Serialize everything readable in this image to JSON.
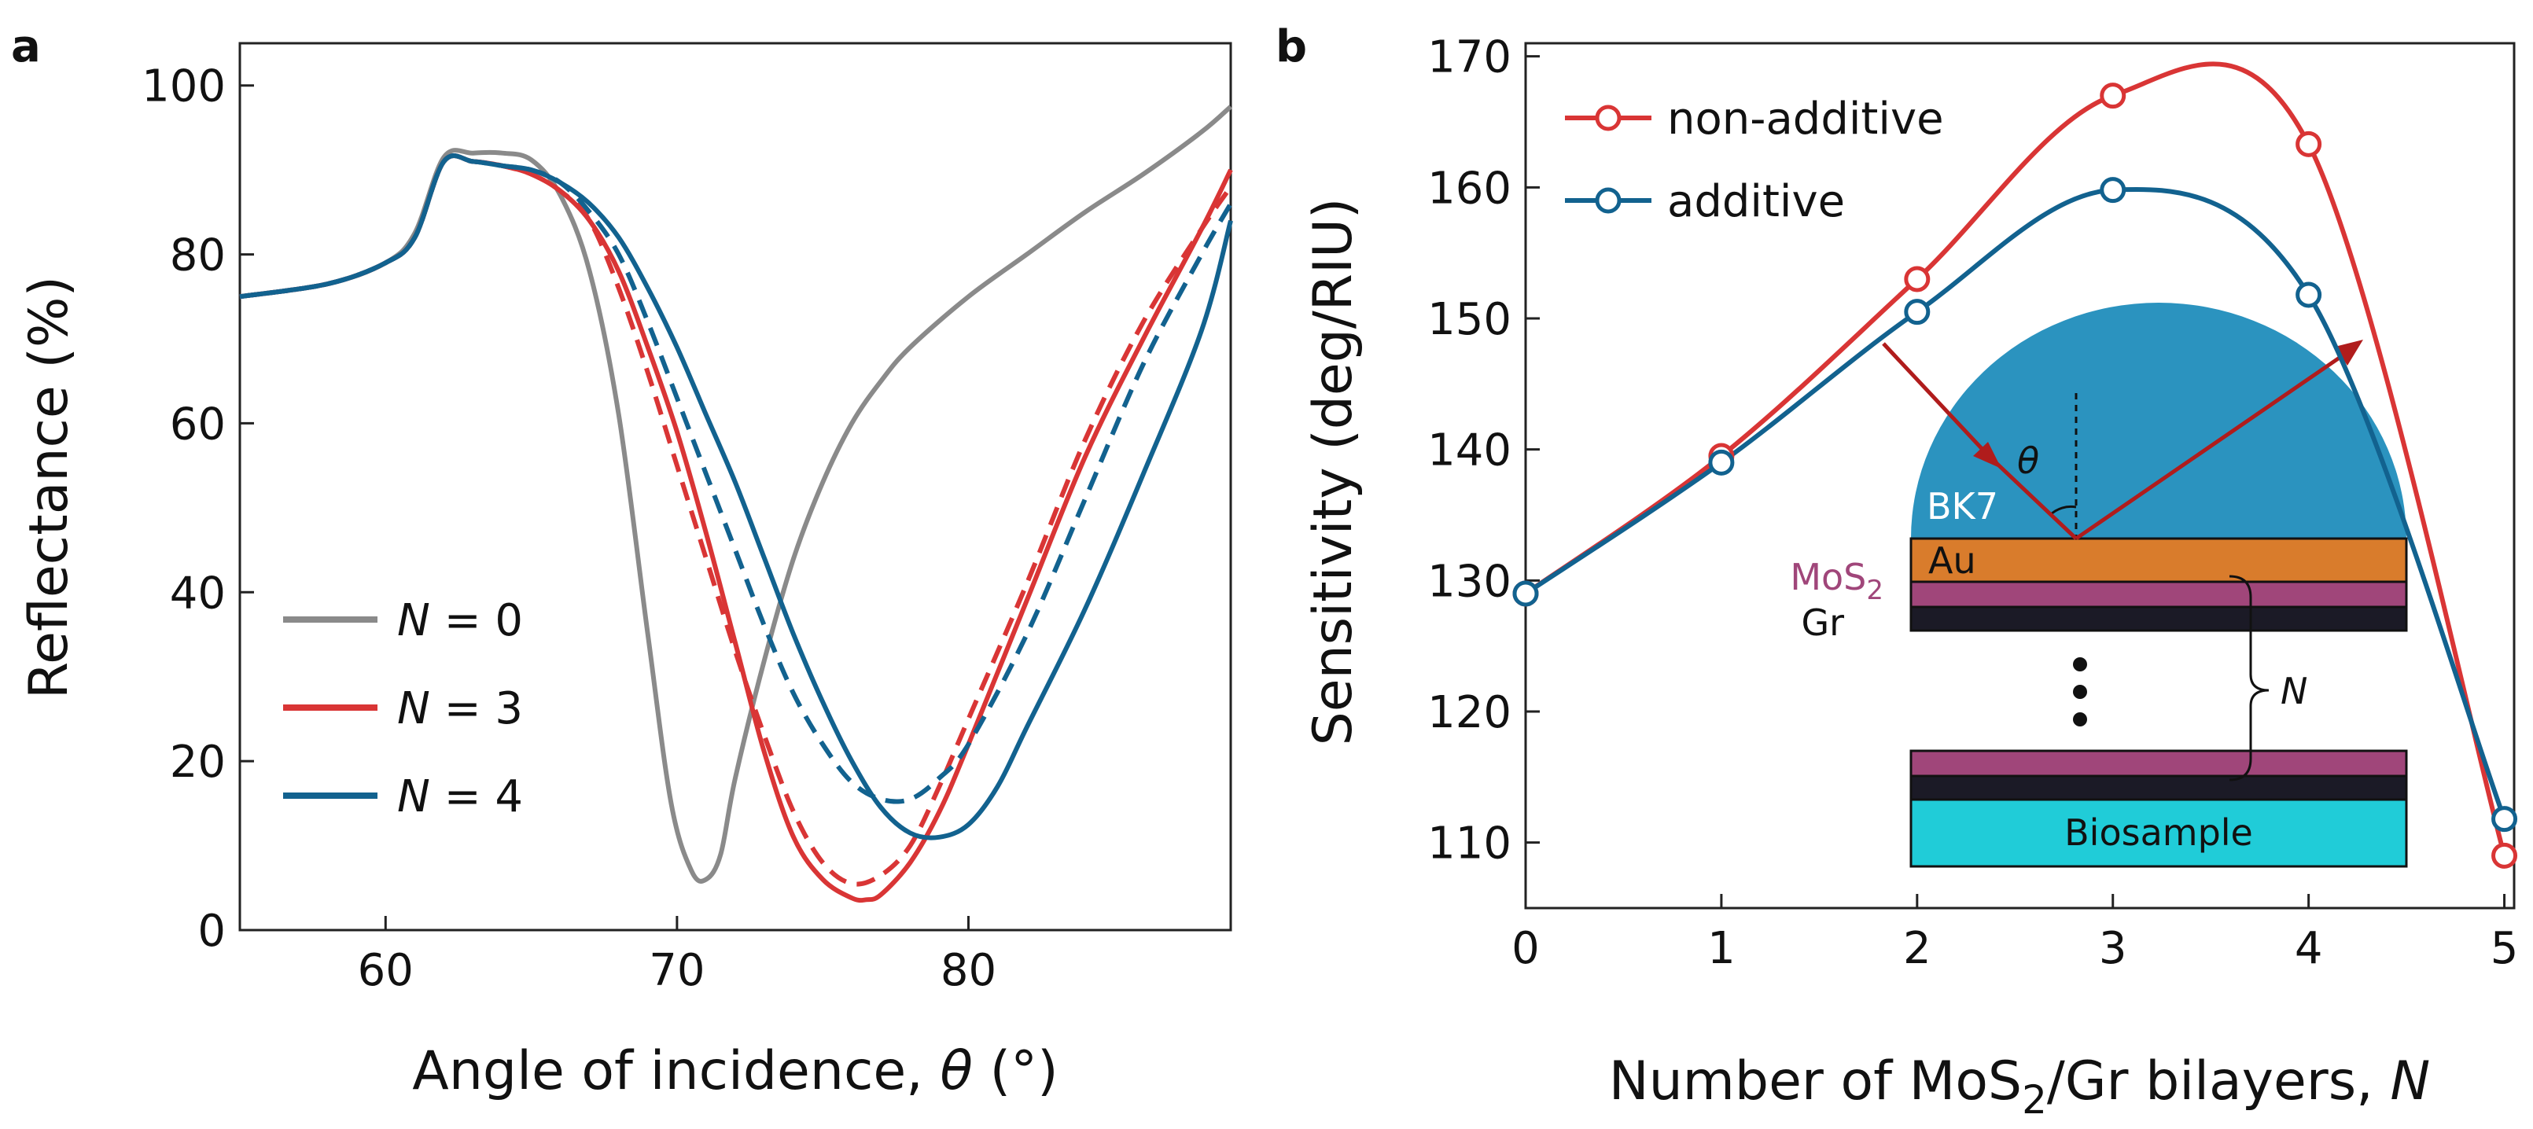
{
  "colors": {
    "gray": "#8a8a8a",
    "red": "#d93535",
    "blue": "#12628f",
    "prism": "#2b93bf",
    "gold": "#d97c2c",
    "mos2": "#a0467a",
    "graphene": "#1b1a26",
    "biosample": "#20ccd8",
    "arrow": "#b01c1c",
    "mos2_text": "#a0467a"
  },
  "chart_data": [
    {
      "panel": "a",
      "type": "line",
      "xlabel_main": "Angle of incidence, ",
      "xlabel_symbol": "θ",
      "xlabel_unit": " (°)",
      "ylabel": "Reflectance  (%)",
      "xlim": [
        55,
        89
      ],
      "ylim": [
        0,
        105
      ],
      "xticks": [
        60,
        70,
        80
      ],
      "yticks": [
        0,
        20,
        40,
        60,
        80,
        100
      ],
      "legend": [
        {
          "label_n": "N",
          "label_rest": " = 0",
          "color_key": "gray"
        },
        {
          "label_n": "N",
          "label_rest": " = 3",
          "color_key": "red"
        },
        {
          "label_n": "N",
          "label_rest": " = 4",
          "color_key": "blue"
        }
      ],
      "series": [
        {
          "name": "N = 0",
          "color_key": "gray",
          "dash": false,
          "x": [
            55,
            58,
            60,
            61,
            62,
            63,
            64,
            65,
            66,
            67,
            68,
            69,
            69.8,
            70.5,
            71,
            71.5,
            72,
            73,
            74,
            75,
            76,
            77,
            78,
            80,
            82,
            84,
            86,
            88,
            89
          ],
          "y": [
            75,
            76.5,
            79,
            82.5,
            91.5,
            92,
            92,
            91.2,
            87,
            78,
            61,
            35,
            15,
            7,
            6,
            9,
            18,
            32,
            44,
            53,
            60,
            65,
            69,
            75,
            80,
            85,
            89.5,
            94.5,
            97.5
          ]
        },
        {
          "name": "N = 3 solid",
          "color_key": "red",
          "dash": false,
          "x": [
            55,
            58,
            60,
            61,
            62,
            63,
            64,
            65,
            66,
            67,
            68,
            69,
            70,
            71,
            72,
            73,
            74,
            75,
            76,
            76.5,
            77,
            78,
            79,
            80,
            82,
            84,
            86,
            88,
            89
          ],
          "y": [
            75,
            76.5,
            79,
            82,
            91,
            91,
            90.5,
            89.5,
            87.5,
            84,
            78,
            69,
            59,
            47,
            34,
            21,
            11,
            6,
            3.8,
            3.6,
            4.2,
            8,
            14,
            22,
            39,
            56,
            70,
            83,
            90
          ]
        },
        {
          "name": "N = 3 dashed",
          "color_key": "red",
          "dash": true,
          "x": [
            55,
            58,
            60,
            61,
            62,
            63,
            64,
            65,
            66,
            67,
            68,
            69,
            70,
            71,
            72,
            73,
            74,
            75,
            76,
            77,
            78,
            79,
            80,
            82,
            84,
            86,
            88,
            89
          ],
          "y": [
            75,
            76.5,
            79,
            82,
            91,
            91,
            90.5,
            89.5,
            87.5,
            84,
            76,
            66,
            55,
            44,
            33,
            23,
            14,
            8,
            5.5,
            6.5,
            10,
            17,
            25,
            41,
            58,
            72,
            83,
            88
          ]
        },
        {
          "name": "N = 4 solid",
          "color_key": "blue",
          "dash": false,
          "x": [
            55,
            58,
            60,
            61,
            62,
            63,
            64,
            65,
            66,
            67,
            68,
            69,
            70,
            71,
            72,
            73,
            74,
            75,
            76,
            77,
            78,
            79,
            80,
            81,
            82,
            84,
            86,
            88,
            89
          ],
          "y": [
            75,
            76.5,
            79,
            82,
            91,
            91,
            90.5,
            90,
            88.5,
            86,
            82,
            76,
            69,
            61,
            53,
            44,
            35,
            27,
            20,
            14.5,
            11.5,
            11,
            12.5,
            17,
            24,
            38,
            54,
            71,
            84
          ]
        },
        {
          "name": "N = 4 dashed",
          "color_key": "blue",
          "dash": true,
          "x": [
            55,
            58,
            60,
            61,
            62,
            63,
            64,
            65,
            66,
            67,
            68,
            69,
            70,
            71,
            72,
            73,
            74,
            75,
            76,
            77,
            78,
            79,
            80,
            82,
            84,
            86,
            88,
            89
          ],
          "y": [
            75,
            76.5,
            79,
            82,
            91,
            91,
            90.5,
            90,
            88.5,
            85,
            80,
            72,
            63,
            54,
            45,
            36,
            28,
            22,
            17.5,
            15.5,
            15.5,
            18,
            22,
            35,
            51,
            67,
            80,
            86
          ]
        }
      ]
    },
    {
      "panel": "b",
      "type": "line",
      "xlabel_main": "Number of MoS",
      "xlabel_sub": "2",
      "xlabel_mid": "/Gr bilayers, ",
      "xlabel_symbol": "N",
      "ylabel": "Sensitivity (deg/RIU)",
      "xlim": [
        0,
        5.05
      ],
      "ylim": [
        105,
        171
      ],
      "xticks": [
        0,
        1,
        2,
        3,
        4,
        5
      ],
      "yticks": [
        110,
        120,
        130,
        140,
        150,
        160,
        170
      ],
      "legend": [
        {
          "label": "non-additive",
          "color_key": "red"
        },
        {
          "label": "additive",
          "color_key": "blue"
        }
      ],
      "series": [
        {
          "name": "non-additive",
          "color_key": "red",
          "x": [
            0,
            1,
            2,
            3,
            4,
            5
          ],
          "y": [
            129,
            139.5,
            153,
            167,
            163.3,
            109
          ]
        },
        {
          "name": "additive",
          "color_key": "blue",
          "x": [
            0,
            1,
            2,
            3,
            4,
            5
          ],
          "y": [
            129,
            139,
            150.5,
            159.8,
            151.8,
            111.8
          ]
        }
      ],
      "inset": {
        "prism_label": "BK7",
        "gold_label": "Au",
        "mos2_main": "MoS",
        "mos2_sub": "2",
        "gr_label": "Gr",
        "angle_symbol": "θ",
        "n_label": "N",
        "sample_label": "Biosample"
      }
    }
  ]
}
